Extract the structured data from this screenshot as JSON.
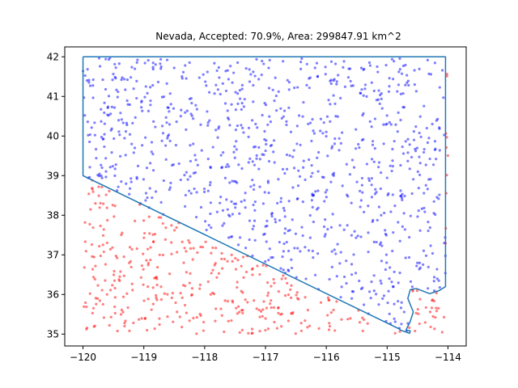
{
  "chart_data": {
    "type": "scatter",
    "title": "Nevada, Accepted: 70.9%, Area: 299847.91 km^2",
    "xlabel": "",
    "ylabel": "",
    "xlim": [
      -120.3,
      -113.7
    ],
    "ylim": [
      34.7,
      42.25
    ],
    "x_ticks": [
      -120,
      -119,
      -118,
      -117,
      -116,
      -115,
      -114
    ],
    "y_ticks": [
      35,
      36,
      37,
      38,
      39,
      40,
      41,
      42
    ],
    "x_tick_labels": [
      "−120",
      "−119",
      "−118",
      "−117",
      "−116",
      "−115",
      "−114"
    ],
    "y_tick_labels": [
      "35",
      "36",
      "37",
      "38",
      "39",
      "40",
      "41",
      "42"
    ],
    "grid": false,
    "colors": {
      "accepted": "#0000ff",
      "rejected": "#ff0000",
      "boundary": "#1f77b4"
    },
    "point_alpha": 0.5,
    "boundary": {
      "x": [
        -120.0,
        -114.04,
        -114.04,
        -114.14,
        -114.3,
        -114.52,
        -114.62,
        -114.66,
        -114.57,
        -114.62,
        -114.69,
        -114.62,
        -114.63,
        -114.78,
        -114.8,
        -120.0,
        -120.0
      ],
      "y": [
        42.0,
        42.0,
        36.2,
        36.1,
        36.02,
        36.15,
        36.12,
        35.9,
        35.56,
        35.32,
        35.1,
        35.08,
        35.02,
        35.1,
        35.13,
        39.0,
        42.0
      ]
    },
    "n_points": 1350,
    "accepted_fraction": 0.709,
    "seed": 20240611
  }
}
